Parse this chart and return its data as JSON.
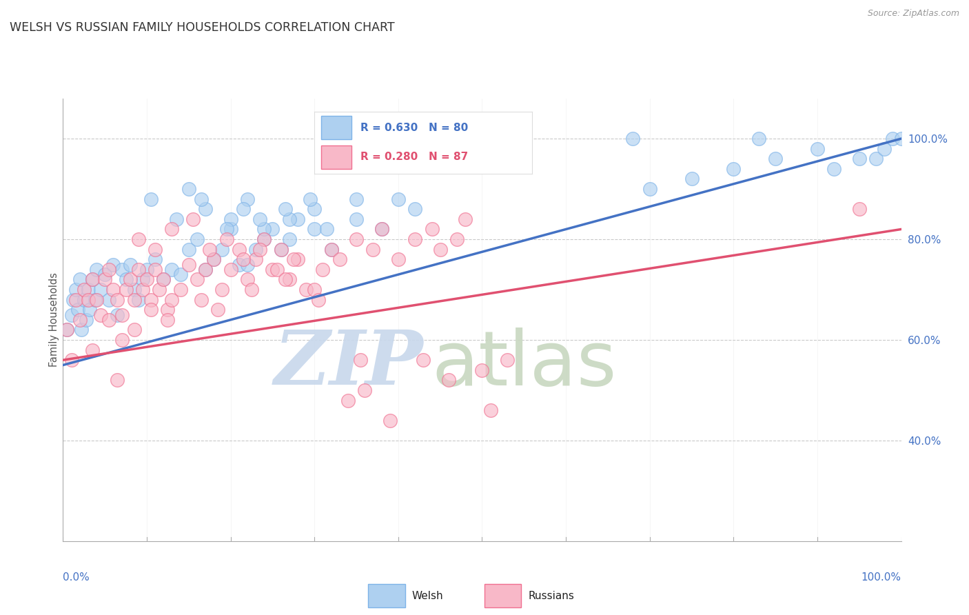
{
  "title": "WELSH VS RUSSIAN FAMILY HOUSEHOLDS CORRELATION CHART",
  "source_text": "Source: ZipAtlas.com",
  "ylabel": "Family Households",
  "welsh_R": 0.63,
  "welsh_N": 80,
  "russian_R": 0.28,
  "russian_N": 87,
  "welsh_color": "#7EB3E8",
  "welsh_face_color": "#AED0F0",
  "russian_color": "#F07090",
  "russian_face_color": "#F8B8C8",
  "welsh_line_color": "#4472C4",
  "russian_line_color": "#E05070",
  "background_color": "#FFFFFF",
  "grid_color": "#BBBBBB",
  "title_color": "#333333",
  "axis_label_color": "#4472C4",
  "watermark_zip_color": "#C8D8EC",
  "watermark_atlas_color": "#C8D8C0",
  "xlim": [
    0,
    100
  ],
  "ylim": [
    20,
    108
  ],
  "ytick_positions": [
    40,
    60,
    80,
    100
  ],
  "ytick_labels": [
    "40.0%",
    "60.0%",
    "80.0%",
    "100.0%"
  ],
  "welsh_line_x0": 0,
  "welsh_line_x1": 100,
  "welsh_line_y0": 55,
  "welsh_line_y1": 100,
  "russian_line_x0": 0,
  "russian_line_x1": 100,
  "russian_line_y0": 56,
  "russian_line_y1": 82,
  "welsh_x": [
    0.5,
    1.0,
    1.2,
    1.5,
    1.8,
    2.0,
    2.2,
    2.5,
    2.8,
    3.0,
    3.2,
    3.5,
    3.8,
    4.0,
    4.5,
    5.0,
    5.5,
    6.0,
    6.5,
    7.0,
    7.5,
    8.0,
    8.5,
    9.0,
    9.5,
    10.0,
    11.0,
    12.0,
    13.0,
    14.0,
    15.0,
    16.0,
    17.0,
    18.0,
    19.0,
    20.0,
    21.0,
    22.0,
    23.0,
    24.0,
    25.0,
    26.0,
    27.0,
    28.0,
    30.0,
    32.0,
    35.0,
    38.0,
    40.0,
    42.0,
    15.0,
    17.0,
    20.0,
    22.0,
    24.0,
    27.0,
    30.0,
    35.0,
    68.0,
    83.0,
    97.0,
    98.0,
    99.0,
    100.0,
    70.0,
    75.0,
    80.0,
    85.0,
    90.0,
    92.0,
    95.0,
    10.5,
    13.5,
    16.5,
    19.5,
    21.5,
    23.5,
    26.5,
    29.5,
    31.5
  ],
  "welsh_y": [
    62.0,
    65.0,
    68.0,
    70.0,
    66.0,
    72.0,
    62.0,
    68.0,
    64.0,
    70.0,
    66.0,
    72.0,
    68.0,
    74.0,
    70.0,
    73.0,
    68.0,
    75.0,
    65.0,
    74.0,
    72.0,
    75.0,
    70.0,
    68.0,
    72.0,
    74.0,
    76.0,
    72.0,
    74.0,
    73.0,
    78.0,
    80.0,
    74.0,
    76.0,
    78.0,
    82.0,
    75.0,
    75.0,
    78.0,
    80.0,
    82.0,
    78.0,
    80.0,
    84.0,
    82.0,
    78.0,
    84.0,
    82.0,
    88.0,
    86.0,
    90.0,
    86.0,
    84.0,
    88.0,
    82.0,
    84.0,
    86.0,
    88.0,
    100.0,
    100.0,
    96.0,
    98.0,
    100.0,
    100.0,
    90.0,
    92.0,
    94.0,
    96.0,
    98.0,
    94.0,
    96.0,
    88.0,
    84.0,
    88.0,
    82.0,
    86.0,
    84.0,
    86.0,
    88.0,
    82.0
  ],
  "russian_x": [
    0.5,
    1.0,
    1.5,
    2.0,
    2.5,
    3.0,
    3.5,
    4.0,
    4.5,
    5.0,
    5.5,
    6.0,
    6.5,
    7.0,
    7.5,
    8.0,
    8.5,
    9.0,
    9.5,
    10.0,
    10.5,
    11.0,
    11.5,
    12.0,
    12.5,
    13.0,
    14.0,
    15.0,
    16.0,
    17.0,
    18.0,
    19.0,
    20.0,
    21.0,
    22.0,
    23.0,
    24.0,
    25.0,
    26.0,
    27.0,
    28.0,
    29.0,
    30.0,
    31.0,
    32.0,
    33.0,
    35.0,
    37.0,
    38.0,
    40.0,
    42.0,
    44.0,
    45.0,
    47.0,
    48.0,
    95.0,
    50.0,
    43.0,
    36.0,
    34.0,
    39.0,
    46.0,
    51.0,
    53.0,
    9.0,
    11.0,
    13.0,
    15.5,
    17.5,
    19.5,
    21.5,
    23.5,
    25.5,
    27.5,
    7.0,
    5.5,
    8.5,
    10.5,
    12.5,
    16.5,
    18.5,
    22.5,
    26.5,
    30.5,
    35.5,
    3.5,
    6.5
  ],
  "russian_y": [
    62.0,
    56.0,
    68.0,
    64.0,
    70.0,
    68.0,
    72.0,
    68.0,
    65.0,
    72.0,
    74.0,
    70.0,
    68.0,
    65.0,
    70.0,
    72.0,
    68.0,
    74.0,
    70.0,
    72.0,
    68.0,
    74.0,
    70.0,
    72.0,
    66.0,
    68.0,
    70.0,
    75.0,
    72.0,
    74.0,
    76.0,
    70.0,
    74.0,
    78.0,
    72.0,
    76.0,
    80.0,
    74.0,
    78.0,
    72.0,
    76.0,
    70.0,
    70.0,
    74.0,
    78.0,
    76.0,
    80.0,
    78.0,
    82.0,
    76.0,
    80.0,
    82.0,
    78.0,
    80.0,
    84.0,
    86.0,
    54.0,
    56.0,
    50.0,
    48.0,
    44.0,
    52.0,
    46.0,
    56.0,
    80.0,
    78.0,
    82.0,
    84.0,
    78.0,
    80.0,
    76.0,
    78.0,
    74.0,
    76.0,
    60.0,
    64.0,
    62.0,
    66.0,
    64.0,
    68.0,
    66.0,
    70.0,
    72.0,
    68.0,
    56.0,
    58.0,
    52.0
  ]
}
